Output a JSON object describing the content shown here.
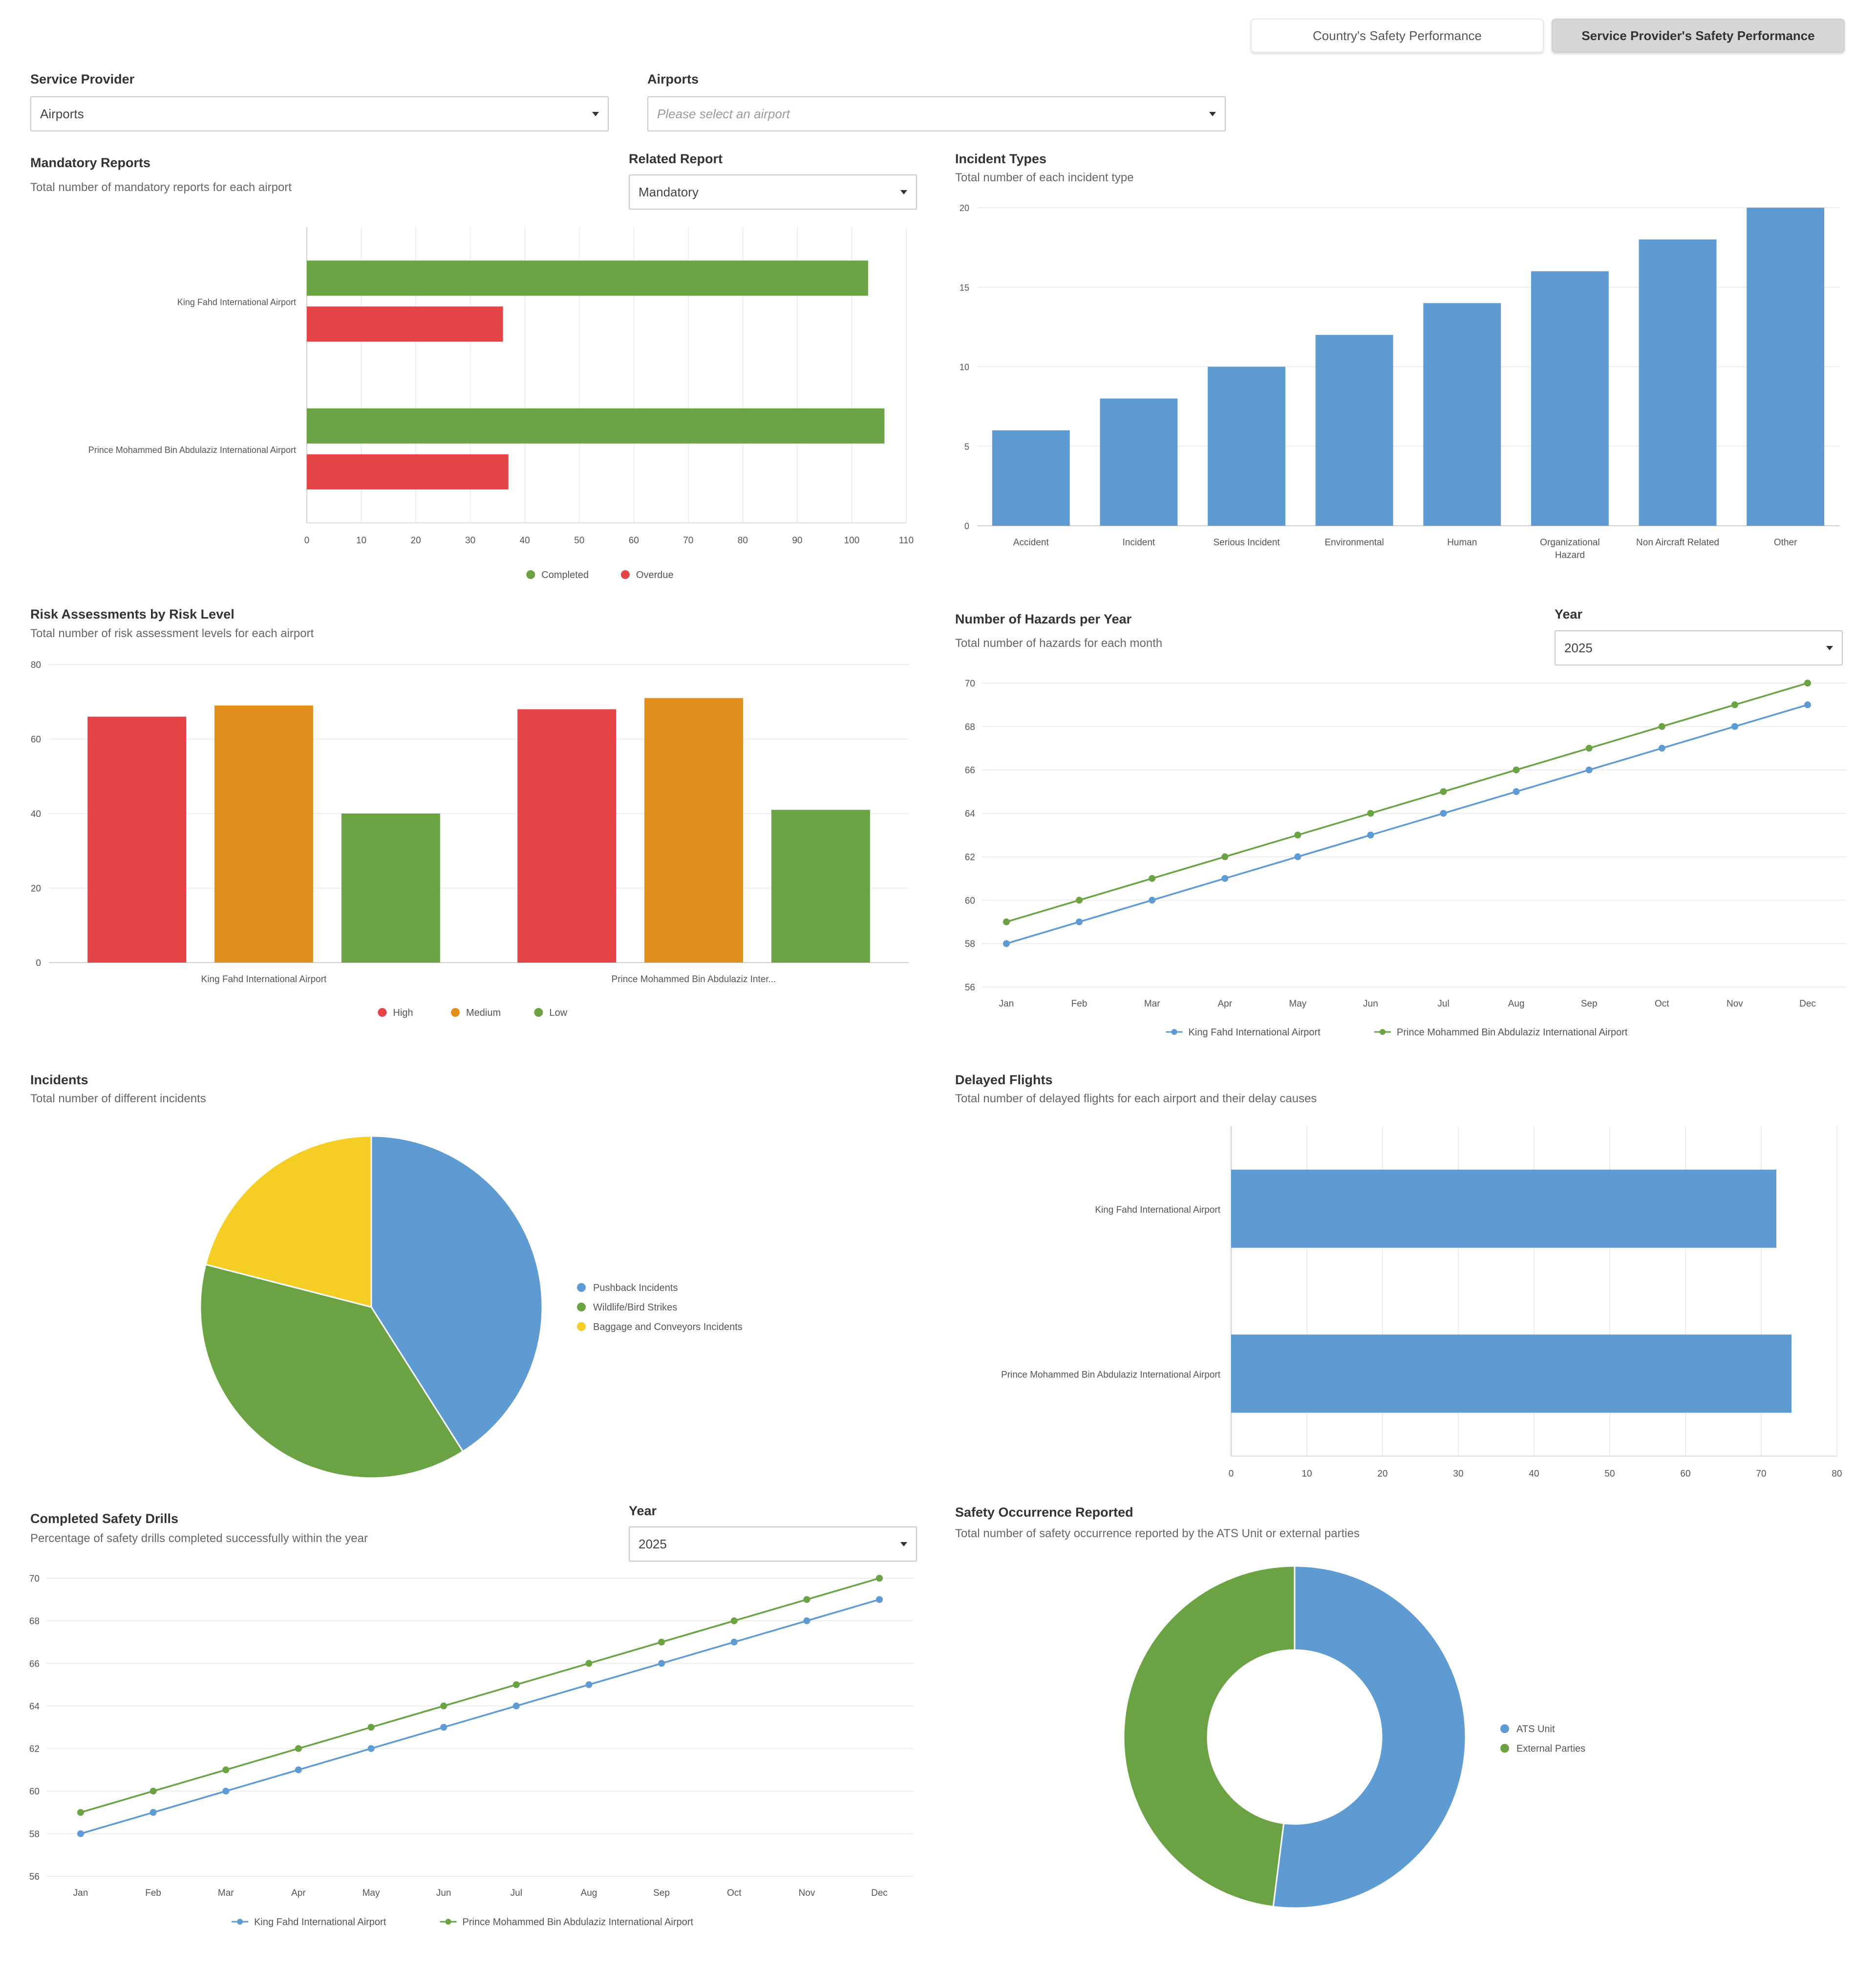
{
  "tabs": [
    {
      "label": "Country's Safety Performance",
      "active": false
    },
    {
      "label": "Service Provider's Safety Performance",
      "active": true
    }
  ],
  "filters": {
    "service_provider": {
      "label": "Service Provider",
      "value": "Airports"
    },
    "airports": {
      "label": "Airports",
      "placeholder": "Please select an airport"
    }
  },
  "mandatory_reports": {
    "title": "Mandatory Reports",
    "subtitle": "Total number of mandatory reports for each airport",
    "related_report": {
      "label": "Related Report",
      "value": "Mandatory"
    }
  },
  "incident_types": {
    "title": "Incident Types",
    "subtitle": "Total number of each incident type"
  },
  "risk_assessments": {
    "title": "Risk Assessments by Risk Level",
    "subtitle": "Total number of risk assessment levels for each airport"
  },
  "hazards": {
    "title": "Number of Hazards per Year",
    "subtitle": "Total number of hazards for each month",
    "year": {
      "label": "Year",
      "value": "2025"
    }
  },
  "incidents": {
    "title": "Incidents",
    "subtitle": "Total number of different incidents"
  },
  "delayed_flights": {
    "title": "Delayed Flights",
    "subtitle": "Total number of delayed flights for each airport and their delay causes"
  },
  "safety_drills": {
    "title": "Completed Safety Drills",
    "subtitle": "Percentage of safety drills completed successfully within the year",
    "year": {
      "label": "Year",
      "value": "2025"
    }
  },
  "safety_occurrence": {
    "title": "Safety Occurrence Reported",
    "subtitle": "Total number of safety occurrence reported by the ATS Unit or external parties"
  },
  "colors": {
    "blue": "#5f9bd3",
    "green": "#6ba344",
    "red": "#e54446",
    "orange": "#e38f1c",
    "yellow": "#f4ce24"
  },
  "chart_data": [
    {
      "id": "mandatory",
      "type": "bar",
      "orientation": "horizontal",
      "categories": [
        "King Fahd International Airport",
        "Prince Mohammed Bin Abdulaziz International Airport"
      ],
      "series": [
        {
          "name": "Completed",
          "color": "#6ba344",
          "values": [
            103,
            106
          ]
        },
        {
          "name": "Overdue",
          "color": "#e54446",
          "values": [
            36,
            37
          ]
        }
      ],
      "xlim": [
        0,
        110
      ],
      "xticks": [
        "0",
        "10",
        "20",
        "30",
        "40",
        "50",
        "60",
        "70",
        "80",
        "90",
        "100",
        "110"
      ],
      "grid": true,
      "legend": "bottom"
    },
    {
      "id": "incident_types",
      "type": "bar",
      "categories": [
        "Accident",
        "Incident",
        "Serious Incident",
        "Environmental",
        "Human",
        "Organizational Hazard",
        "Non Aircraft Related",
        "Other"
      ],
      "values": [
        6,
        8,
        10,
        12,
        14,
        16,
        18,
        20
      ],
      "color": "#5f9bd3",
      "ylim": [
        0,
        20
      ],
      "yticks": [
        "0",
        "5",
        "10",
        "15",
        "20"
      ],
      "grid": true
    },
    {
      "id": "risk",
      "type": "bar",
      "categories": [
        "King Fahd International Airport",
        "Prince Mohammed Bin Abdulaziz Inter..."
      ],
      "series": [
        {
          "name": "High",
          "color": "#e54446",
          "values": [
            66,
            68
          ]
        },
        {
          "name": "Medium",
          "color": "#e38f1c",
          "values": [
            69,
            71
          ]
        },
        {
          "name": "Low",
          "color": "#6ba344",
          "values": [
            40,
            41
          ]
        }
      ],
      "ylim": [
        0,
        80
      ],
      "yticks": [
        "0",
        "20",
        "40",
        "60",
        "80"
      ],
      "grid": true,
      "legend": "bottom"
    },
    {
      "id": "hazards",
      "type": "line",
      "x": [
        "Jan",
        "Feb",
        "Mar",
        "Apr",
        "May",
        "Jun",
        "Jul",
        "Aug",
        "Sep",
        "Oct",
        "Nov",
        "Dec"
      ],
      "series": [
        {
          "name": "King Fahd International Airport",
          "color": "#5f9bd3",
          "values": [
            58,
            59,
            60,
            61,
            62,
            63,
            64,
            65,
            66,
            67,
            68,
            69
          ]
        },
        {
          "name": "Prince Mohammed Bin Abdulaziz International Airport",
          "color": "#6ba344",
          "values": [
            59,
            60,
            61,
            62,
            63,
            64,
            65,
            66,
            67,
            68,
            69,
            70
          ]
        }
      ],
      "ylim": [
        56,
        70
      ],
      "yticks": [
        "56",
        "58",
        "60",
        "62",
        "64",
        "66",
        "68",
        "70"
      ],
      "grid": true,
      "legend": "bottom"
    },
    {
      "id": "incidents_pie",
      "type": "pie",
      "labels": [
        "Pushback Incidents",
        "Wildlife/Bird Strikes",
        "Baggage and Conveyors Incidents"
      ],
      "values": [
        41,
        38,
        21
      ],
      "colors": [
        "#5f9bd3",
        "#6ba344",
        "#f4ce24"
      ],
      "legend": "right"
    },
    {
      "id": "delayed",
      "type": "bar",
      "orientation": "horizontal",
      "categories": [
        "King Fahd International Airport",
        "Prince Mohammed Bin Abdulaziz International Airport"
      ],
      "values": [
        72,
        74
      ],
      "color": "#5f9bd3",
      "xlim": [
        0,
        80
      ],
      "xticks": [
        "0",
        "10",
        "20",
        "30",
        "40",
        "50",
        "60",
        "70",
        "80"
      ],
      "grid": true
    },
    {
      "id": "drills",
      "type": "line",
      "x": [
        "Jan",
        "Feb",
        "Mar",
        "Apr",
        "May",
        "Jun",
        "Jul",
        "Aug",
        "Sep",
        "Oct",
        "Nov",
        "Dec"
      ],
      "series": [
        {
          "name": "King Fahd International Airport",
          "color": "#5f9bd3",
          "values": [
            58,
            59,
            60,
            61,
            62,
            63,
            64,
            65,
            66,
            67,
            68,
            69
          ]
        },
        {
          "name": "Prince Mohammed Bin Abdulaziz International Airport",
          "color": "#6ba344",
          "values": [
            59,
            60,
            61,
            62,
            63,
            64,
            65,
            66,
            67,
            68,
            69,
            70
          ]
        }
      ],
      "ylim": [
        56,
        70
      ],
      "yticks": [
        "56",
        "58",
        "60",
        "62",
        "64",
        "66",
        "68",
        "70"
      ],
      "grid": true,
      "legend": "bottom"
    },
    {
      "id": "occurrence",
      "type": "pie",
      "donut": true,
      "labels": [
        "ATS Unit",
        "External Parties"
      ],
      "values": [
        52,
        48
      ],
      "colors": [
        "#5f9bd3",
        "#6ba344"
      ],
      "legend": "right"
    }
  ]
}
